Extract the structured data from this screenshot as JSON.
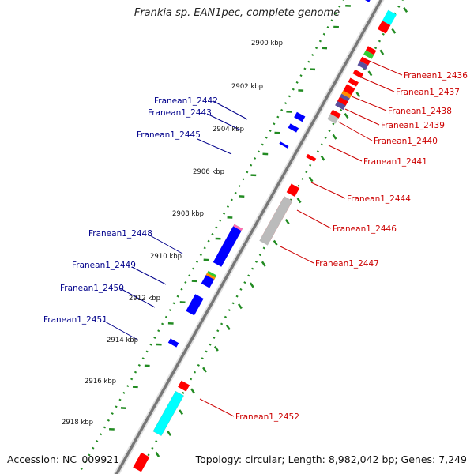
{
  "title": "Frankia sp. EAN1pec, complete genome",
  "footer": {
    "accession": "Accession: NC_009921",
    "topology": "Topology: circular; Length: 8,982,042 bp; Genes: 7,249"
  },
  "colors": {
    "backbone": "#8a8a8a",
    "tick_major": "#228b22",
    "tick_minor": "#228b22",
    "label_forward": "#cc0000",
    "label_reverse": "#00008b",
    "red": "#ff0000",
    "blue": "#0000ff",
    "gray": "#bbbbbb",
    "cyan": "#00ffff",
    "green": "#33cc33",
    "orange": "#ff8c00",
    "purple": "#5a4f9c",
    "pink": "#ff69b4",
    "lightgray": "#d3d3d3"
  },
  "axis": {
    "kbp_labels": [
      "2900 kbp",
      "2902 kbp",
      "2904 kbp",
      "2906 kbp",
      "2908 kbp",
      "2910 kbp",
      "2912 kbp",
      "2914 kbp",
      "2916 kbp",
      "2918 kbp"
    ]
  },
  "labels_forward": [
    "Franean1_2436",
    "Franean1_2437",
    "Franean1_2438",
    "Franean1_2439",
    "Franean1_2440",
    "Franean1_2441",
    "Franean1_2444",
    "Franean1_2446",
    "Franean1_2447",
    "Franean1_2452"
  ],
  "labels_reverse": [
    "Franean1_2442",
    "Franean1_2443",
    "Franean1_2445",
    "Franean1_2448",
    "Franean1_2449",
    "Franean1_2450",
    "Franean1_2451"
  ],
  "features_outer": [
    {
      "color": "lightgray",
      "start": 2898.7,
      "end": 2899.1
    },
    {
      "color": "red",
      "start": 2899.2,
      "end": 2899.6
    },
    {
      "color": "cyan",
      "start": 2898.7,
      "end": 2899.2
    },
    {
      "color": "red",
      "start": 2900.4,
      "end": 2900.6
    },
    {
      "color": "green",
      "start": 2900.6,
      "end": 2900.8
    },
    {
      "color": "red",
      "start": 2900.9,
      "end": 2901.1
    },
    {
      "color": "purple",
      "start": 2901.1,
      "end": 2901.3
    },
    {
      "color": "red",
      "start": 2901.5,
      "end": 2901.7
    },
    {
      "color": "red",
      "start": 2901.9,
      "end": 2902.1
    },
    {
      "color": "red",
      "start": 2902.2,
      "end": 2902.6
    },
    {
      "color": "orange",
      "start": 2902.5,
      "end": 2902.65
    },
    {
      "color": "purple",
      "start": 2902.65,
      "end": 2903.2
    },
    {
      "color": "red",
      "start": 2902.8,
      "end": 2903.0
    },
    {
      "color": "red",
      "start": 2903.4,
      "end": 2903.6
    },
    {
      "color": "gray",
      "start": 2903.6,
      "end": 2903.85
    },
    {
      "color": "red",
      "start": 2905.5,
      "end": 2905.65
    },
    {
      "color": "red",
      "start": 2906.9,
      "end": 2907.3
    },
    {
      "color": "red",
      "start": 2907.5,
      "end": 2909.4
    },
    {
      "color": "gray",
      "start": 2907.5,
      "end": 2909.6
    },
    {
      "color": "red",
      "start": 2916.2,
      "end": 2916.5
    },
    {
      "color": "red",
      "start": 2916.7,
      "end": 2918.6
    },
    {
      "color": "cyan",
      "start": 2916.7,
      "end": 2918.6
    },
    {
      "color": "red",
      "start": 2919.6,
      "end": 2920.3
    }
  ],
  "features_inner": [
    {
      "color": "lightgray",
      "start": 2898.5,
      "end": 2898.8
    },
    {
      "color": "blue",
      "start": 2898.5,
      "end": 2898.8
    },
    {
      "color": "blue",
      "start": 2904.2,
      "end": 2904.45
    },
    {
      "color": "blue",
      "start": 2904.75,
      "end": 2904.95
    },
    {
      "color": "blue",
      "start": 2905.6,
      "end": 2905.7
    },
    {
      "color": "green",
      "start": 2909.5,
      "end": 2910.8
    },
    {
      "color": "pink",
      "start": 2909.5,
      "end": 2910.8
    },
    {
      "color": "blue",
      "start": 2909.6,
      "end": 2911.3
    },
    {
      "color": "green",
      "start": 2911.7,
      "end": 2911.9
    },
    {
      "color": "orange",
      "start": 2911.8,
      "end": 2912.0
    },
    {
      "color": "blue",
      "start": 2911.9,
      "end": 2912.3
    },
    {
      "color": "blue",
      "start": 2912.8,
      "end": 2913.6
    },
    {
      "color": "blue",
      "start": 2914.9,
      "end": 2915.1
    }
  ]
}
